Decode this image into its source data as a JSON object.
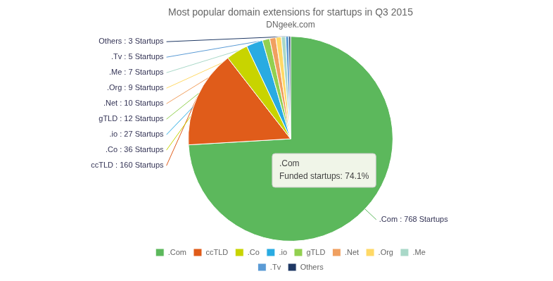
{
  "chart_data": {
    "type": "pie",
    "title": "Most popular domain extensions for startups in Q3 2015",
    "subtitle": "DNgeek.com",
    "categories": [
      ".Com",
      "ccTLD",
      ".Co",
      ".io",
      "gTLD",
      ".Net",
      ".Org",
      ".Me",
      ".Tv",
      "Others"
    ],
    "values": [
      768,
      160,
      36,
      27,
      12,
      10,
      9,
      7,
      5,
      3
    ],
    "value_labels": [
      ".Com : 768 Startups",
      "ccTLD : 160 Startups",
      ".Co : 36 Startups",
      ".io : 27 Startups",
      "gTLD : 12 Startups",
      ".Net : 10 Startups",
      ".Org : 9 Startups",
      ".Me : 7 Startups",
      ".Tv : 5 Startups",
      "Others : 3 Startups"
    ],
    "colors": [
      "#5cb85c",
      "#e05c1a",
      "#c8d400",
      "#29abe2",
      "#92d050",
      "#f0a060",
      "#ffd966",
      "#a9d8c8",
      "#5b9bd5",
      "#1f3864"
    ],
    "data_labels": true,
    "annotations": [
      ".Com",
      "Funded startups: 74.1%"
    ],
    "legend": "bottom"
  }
}
